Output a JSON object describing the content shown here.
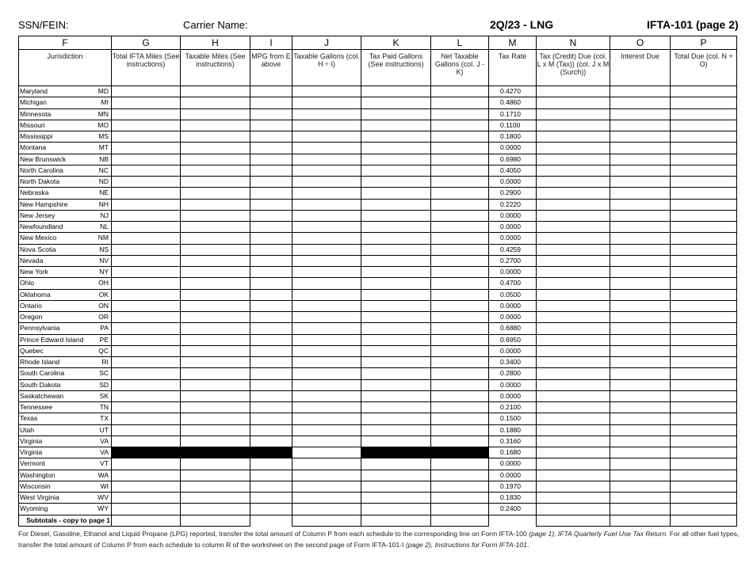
{
  "header": {
    "ssn_label": "SSN/FEIN:",
    "carrier_label": "Carrier Name:",
    "quarter": "2Q/23 - LNG",
    "form": "IFTA-101 (page 2)"
  },
  "columns": [
    {
      "letter": "F",
      "desc": "Jurisdiction"
    },
    {
      "letter": "G",
      "desc": "Total IFTA Miles (See instructions)"
    },
    {
      "letter": "H",
      "desc": "Taxable Miles (See instructions)"
    },
    {
      "letter": "I",
      "desc": "MPG from E above"
    },
    {
      "letter": "J",
      "desc": "Taxable Gallons (col. H ÷ I)"
    },
    {
      "letter": "K",
      "desc": "Tax Paid Gallons (See instructions)"
    },
    {
      "letter": "L",
      "desc": "Net Taxable Gallons (col. J - K)"
    },
    {
      "letter": "M",
      "desc": "Tax Rate"
    },
    {
      "letter": "N",
      "desc": "Tax (Credit) Due (col. L x M (Tax)) (col. J x M (Surch))"
    },
    {
      "letter": "O",
      "desc": "Interest Due"
    },
    {
      "letter": "P",
      "desc": "Total Due (col. N + O)"
    }
  ],
  "rows": [
    {
      "name": "Maryland",
      "code": "MD",
      "rate": "0.4270"
    },
    {
      "name": "Michigan",
      "code": "MI",
      "rate": "0.4860"
    },
    {
      "name": "Minnesota",
      "code": "MN",
      "rate": "0.1710"
    },
    {
      "name": "Missouri",
      "code": "MO",
      "rate": "0.1100"
    },
    {
      "name": "Mississippi",
      "code": "MS",
      "rate": "0.1800"
    },
    {
      "name": "Montana",
      "code": "MT",
      "rate": "0.0000"
    },
    {
      "name": "New Brunswick",
      "code": "NB",
      "rate": "0.6980"
    },
    {
      "name": "North Carolina",
      "code": "NC",
      "rate": "0.4050"
    },
    {
      "name": "North Dakota",
      "code": "ND",
      "rate": "0.0000"
    },
    {
      "name": "Nebraska",
      "code": "NE",
      "rate": "0.2900"
    },
    {
      "name": "New Hampshire",
      "code": "NH",
      "rate": "0.2220"
    },
    {
      "name": "New Jersey",
      "code": "NJ",
      "rate": "0.0000"
    },
    {
      "name": "Newfoundland",
      "code": "NL",
      "rate": "0.0000"
    },
    {
      "name": "New Mexico",
      "code": "NM",
      "rate": "0.0000"
    },
    {
      "name": "Nova Scotia",
      "code": "NS",
      "rate": "0.4259"
    },
    {
      "name": "Nevada",
      "code": "NV",
      "rate": "0.2700"
    },
    {
      "name": "New York",
      "code": "NY",
      "rate": "0.0000"
    },
    {
      "name": "Ohio",
      "code": "OH",
      "rate": "0.4700"
    },
    {
      "name": "Oklahoma",
      "code": "OK",
      "rate": "0.0500"
    },
    {
      "name": "Ontario",
      "code": "ON",
      "rate": "0.0000"
    },
    {
      "name": "Oregon",
      "code": "OR",
      "rate": "0.0000"
    },
    {
      "name": "Pennsylvania",
      "code": "PA",
      "rate": "0.6880"
    },
    {
      "name": "Prince Edward Island",
      "code": "PE",
      "rate": "0.6950"
    },
    {
      "name": "Quebec",
      "code": "QC",
      "rate": "0.0000"
    },
    {
      "name": "Rhode Island",
      "code": "RI",
      "rate": "0.3400"
    },
    {
      "name": "South Carolina",
      "code": "SC",
      "rate": "0.2800"
    },
    {
      "name": "South Dakota",
      "code": "SD",
      "rate": "0.0000"
    },
    {
      "name": "Saskatchewan",
      "code": "SK",
      "rate": "0.0000"
    },
    {
      "name": "Tennessee",
      "code": "TN",
      "rate": "0.2100"
    },
    {
      "name": "Texas",
      "code": "TX",
      "rate": "0.1500"
    },
    {
      "name": "Utah",
      "code": "UT",
      "rate": "0.1880"
    },
    {
      "name": "Virginia",
      "code": "VA",
      "rate": "0.3160"
    },
    {
      "name": "Virginia",
      "code": "VA",
      "rate": "0.1680",
      "blacked": true
    },
    {
      "name": "Vermont",
      "code": "VT",
      "rate": "0.0000"
    },
    {
      "name": "Washington",
      "code": "WA",
      "rate": "0.0000"
    },
    {
      "name": "Wisconsin",
      "code": "WI",
      "rate": "0.1970"
    },
    {
      "name": "West Virginia",
      "code": "WV",
      "rate": "0.1830"
    },
    {
      "name": "Wyoming",
      "code": "WY",
      "rate": "0.2400"
    }
  ],
  "subtotals_label": "Subtotals - copy to page 1",
  "footer": {
    "p1": "For Diesel, Gasoline, Ethanol and Liquid Propane (LPG) reported, transfer the total amount of Column P from each schedule to the corresponding line on Form IFTA-100 ",
    "i1": "(page 1), IFTA Quarterly Fuel Use Tax Return.",
    "p2": "  For all other fuel types, transfer the total amount of Column P from each schedule to column R of the worksheet on the second page of Form IFTA-101-I ",
    "i2": "(page 2), Instructions for Form IFTA-101",
    "p3": "."
  }
}
